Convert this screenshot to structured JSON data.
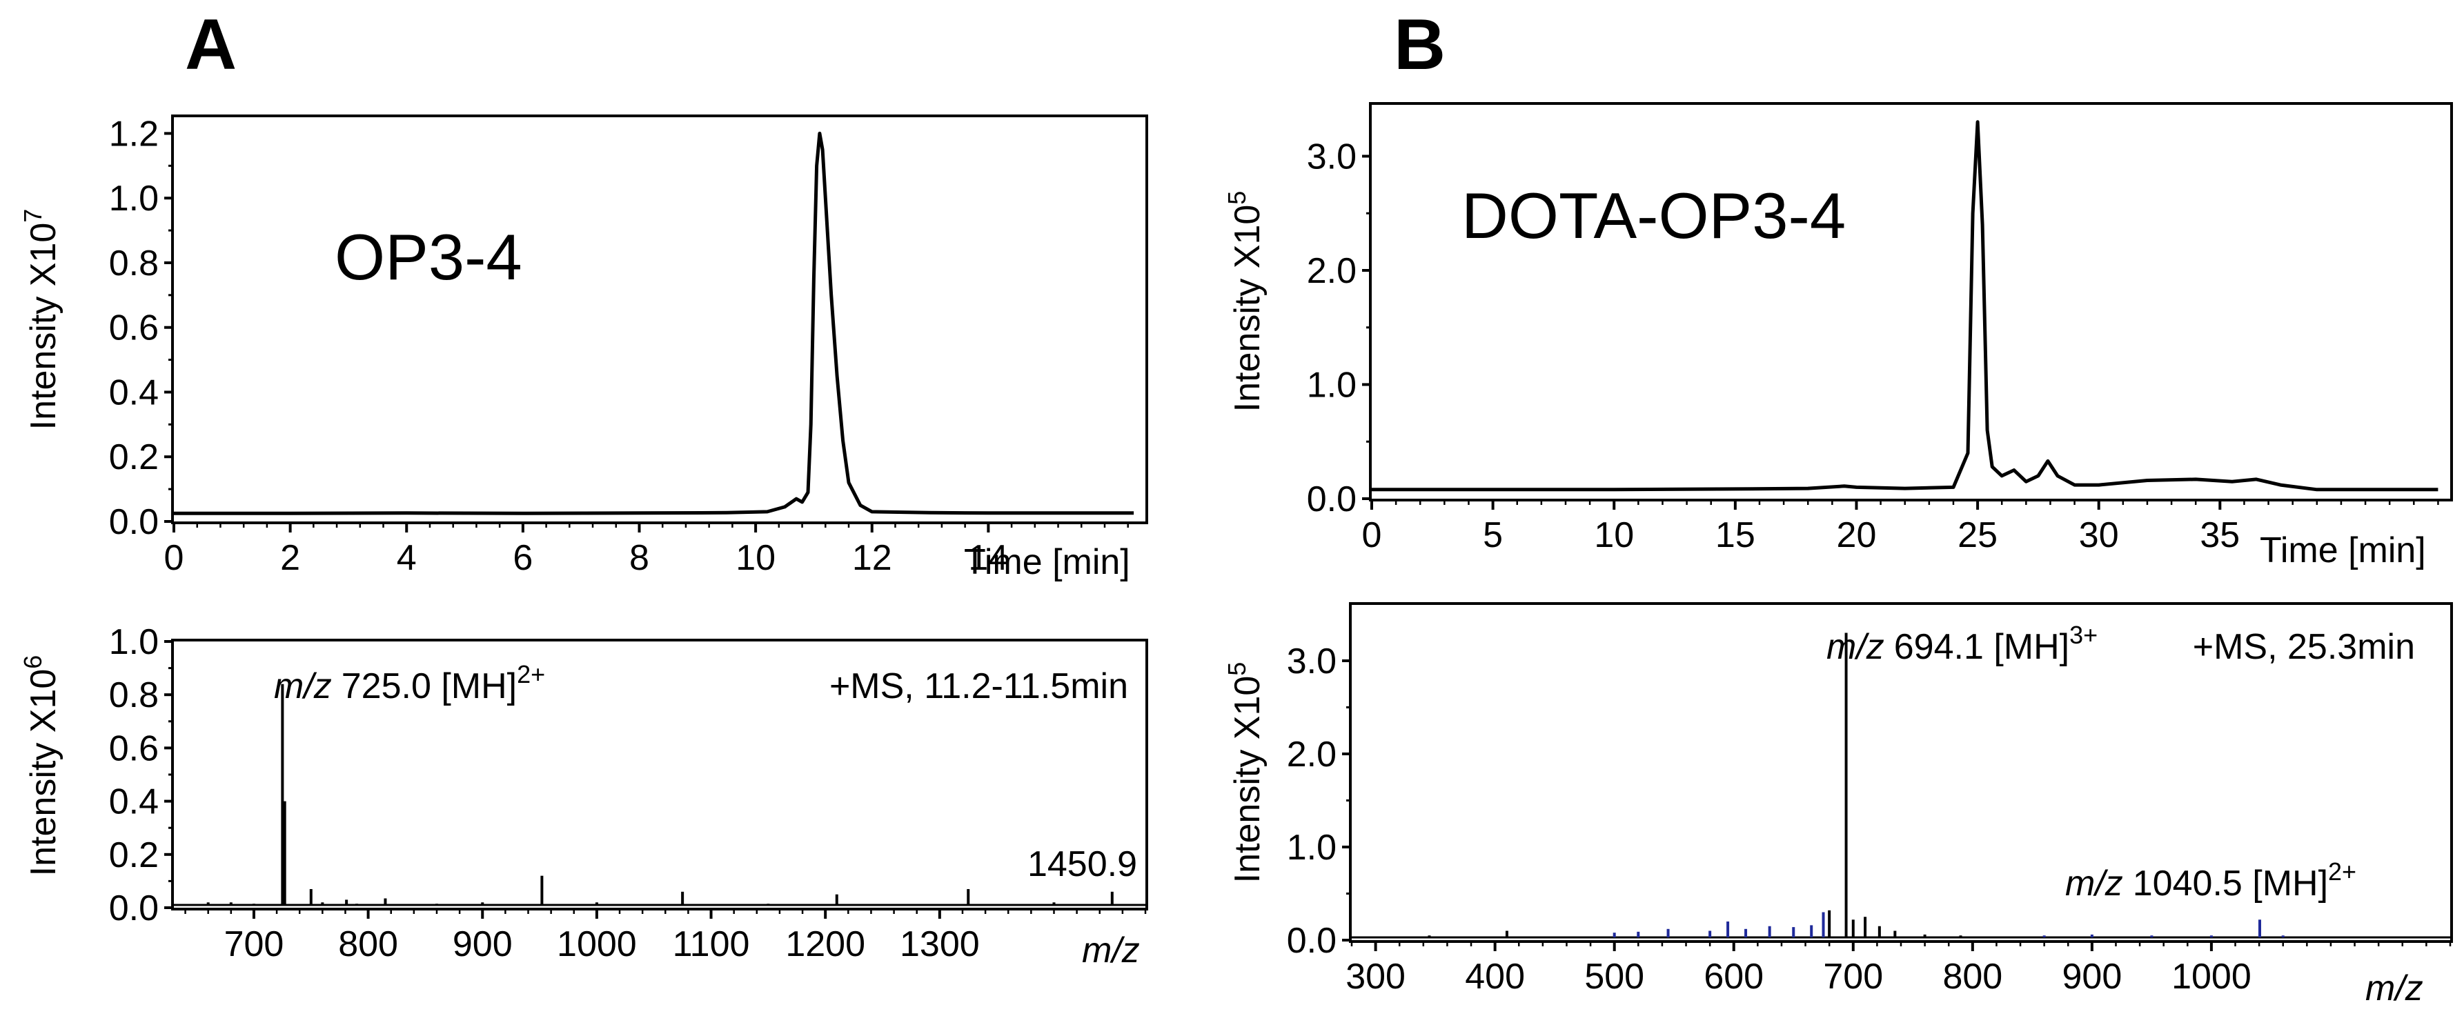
{
  "panels": [
    {
      "letter": "A",
      "compound": "OP3-4",
      "chromatogram": {
        "type": "line",
        "ylabel": "Intensity X10",
        "ylabel_exp": "7",
        "xlabel": "Time [min]",
        "xlim": [
          0,
          16.7
        ],
        "ylim": [
          0,
          1.25
        ],
        "xticks": [
          0,
          2,
          4,
          6,
          8,
          10,
          12,
          14
        ],
        "xtick_labels": [
          "0",
          "2",
          "4",
          "6",
          "8",
          "10",
          "12",
          "14"
        ],
        "yticks": [
          0.0,
          0.2,
          0.4,
          0.6,
          0.8,
          1.0,
          1.2
        ],
        "ytick_labels": [
          "0.0",
          "0.2",
          "0.4",
          "0.6",
          "0.8",
          "1.0",
          "1.2"
        ],
        "series": [
          {
            "name": "OP3-4",
            "x": [
              0,
              2,
              4,
              6,
              8,
              9.5,
              10.2,
              10.5,
              10.7,
              10.8,
              10.9,
              10.95,
              11.0,
              11.05,
              11.1,
              11.15,
              11.2,
              11.3,
              11.4,
              11.5,
              11.6,
              11.8,
              12.0,
              13,
              14,
              15,
              16.5
            ],
            "y": [
              0.025,
              0.025,
              0.026,
              0.025,
              0.026,
              0.027,
              0.03,
              0.045,
              0.07,
              0.06,
              0.09,
              0.3,
              0.75,
              1.1,
              1.2,
              1.15,
              1.0,
              0.7,
              0.45,
              0.25,
              0.12,
              0.05,
              0.03,
              0.027,
              0.026,
              0.026,
              0.026
            ]
          }
        ]
      },
      "mass_spectrum": {
        "type": "bar",
        "ylabel": "Intensity X10",
        "ylabel_exp": "6",
        "xlabel": "m/z",
        "xlim": [
          630,
          1480
        ],
        "ylim": [
          0,
          1.0
        ],
        "xticks": [
          700,
          800,
          900,
          1000,
          1100,
          1200,
          1300
        ],
        "xtick_labels": [
          "700",
          "800",
          "900",
          "1000",
          "1100",
          "1200",
          "1300"
        ],
        "yticks": [
          0.0,
          0.2,
          0.4,
          0.6,
          0.8,
          1.0
        ],
        "ytick_labels": [
          "0.0",
          "0.2",
          "0.4",
          "0.6",
          "0.8",
          "1.0"
        ],
        "scan_label": "+MS, 11.2-11.5min",
        "peak_mz_prefix": "m/z",
        "peak_value": "725.0 [MH]",
        "peak_charge": "2+",
        "secondary_label": "1450.9",
        "peaks": {
          "mz": [
            725.0,
            727,
            750,
            781,
            815,
            952,
            1075,
            1210,
            1325,
            1450.9,
            660,
            680,
            700,
            760,
            790,
            860,
            900,
            1000,
            1150,
            1400
          ],
          "intensity": [
            0.84,
            0.4,
            0.07,
            0.03,
            0.035,
            0.12,
            0.06,
            0.05,
            0.07,
            0.06,
            0.02,
            0.02,
            0.015,
            0.02,
            0.015,
            0.015,
            0.02,
            0.02,
            0.015,
            0.02
          ]
        }
      }
    },
    {
      "letter": "B",
      "compound": "DOTA-OP3-4",
      "chromatogram": {
        "type": "line",
        "ylabel": "Intensity X10",
        "ylabel_exp": "5",
        "xlabel": "Time [min]",
        "xlim": [
          0,
          44.5
        ],
        "ylim": [
          0,
          3.45
        ],
        "xticks": [
          0,
          5,
          10,
          15,
          20,
          25,
          30,
          35
        ],
        "xtick_labels": [
          "0",
          "5",
          "10",
          "15",
          "20",
          "25",
          "30",
          "35"
        ],
        "yticks": [
          0.0,
          1.0,
          2.0,
          3.0
        ],
        "ytick_labels": [
          "0.0",
          "1.0",
          "2.0",
          "3.0"
        ],
        "series": [
          {
            "name": "DOTA-OP3-4",
            "x": [
              0,
              10,
              15,
              18,
              19.5,
              20,
              22,
              24,
              24.6,
              24.8,
              25.0,
              25.2,
              25.4,
              25.6,
              26,
              26.5,
              27,
              27.5,
              27.9,
              28.3,
              29,
              30,
              32,
              34,
              35.5,
              36.5,
              37.5,
              39,
              44
            ],
            "y": [
              0.08,
              0.08,
              0.085,
              0.09,
              0.11,
              0.1,
              0.09,
              0.1,
              0.4,
              2.5,
              3.3,
              2.4,
              0.6,
              0.28,
              0.2,
              0.25,
              0.15,
              0.2,
              0.33,
              0.2,
              0.12,
              0.12,
              0.16,
              0.17,
              0.15,
              0.17,
              0.12,
              0.08,
              0.08
            ]
          }
        ]
      },
      "mass_spectrum": {
        "type": "bar",
        "ylabel": "Intensity X10",
        "ylabel_exp": "5",
        "xlabel": "m/z",
        "xlim": [
          280,
          1200
        ],
        "ylim": [
          0,
          3.6
        ],
        "xticks": [
          300,
          400,
          500,
          600,
          700,
          800,
          900,
          1000
        ],
        "xtick_labels": [
          "300",
          "400",
          "500",
          "600",
          "700",
          "800",
          "900",
          "1000"
        ],
        "yticks": [
          0.0,
          1.0,
          2.0,
          3.0
        ],
        "ytick_labels": [
          "0.0",
          "1.0",
          "2.0",
          "3.0"
        ],
        "scan_label": "+MS, 25.3min",
        "peak_mz_prefix": "m/z",
        "peak_value": "694.1 [MH]",
        "peak_charge": "3+",
        "secondary_mz_prefix": "m/z",
        "secondary_value": "1040.5 [MH]",
        "secondary_charge": "2+",
        "colors": {
          "main": "#000000",
          "secondary": "#1f2a9a"
        },
        "peaks": {
          "mz": [
            694.1,
            680,
            700,
            710,
            722,
            735,
            760,
            790,
            410,
            345
          ],
          "intensity": [
            3.3,
            0.32,
            0.22,
            0.25,
            0.15,
            0.1,
            0.06,
            0.05,
            0.1,
            0.05
          ]
        },
        "secondary_peaks": {
          "mz": [
            500,
            520,
            545,
            580,
            595,
            610,
            630,
            650,
            665,
            675,
            860,
            900,
            950,
            1000,
            1040.5,
            1060
          ],
          "intensity": [
            0.08,
            0.09,
            0.12,
            0.1,
            0.2,
            0.12,
            0.15,
            0.14,
            0.16,
            0.3,
            0.05,
            0.06,
            0.05,
            0.05,
            0.22,
            0.05
          ]
        }
      }
    }
  ]
}
